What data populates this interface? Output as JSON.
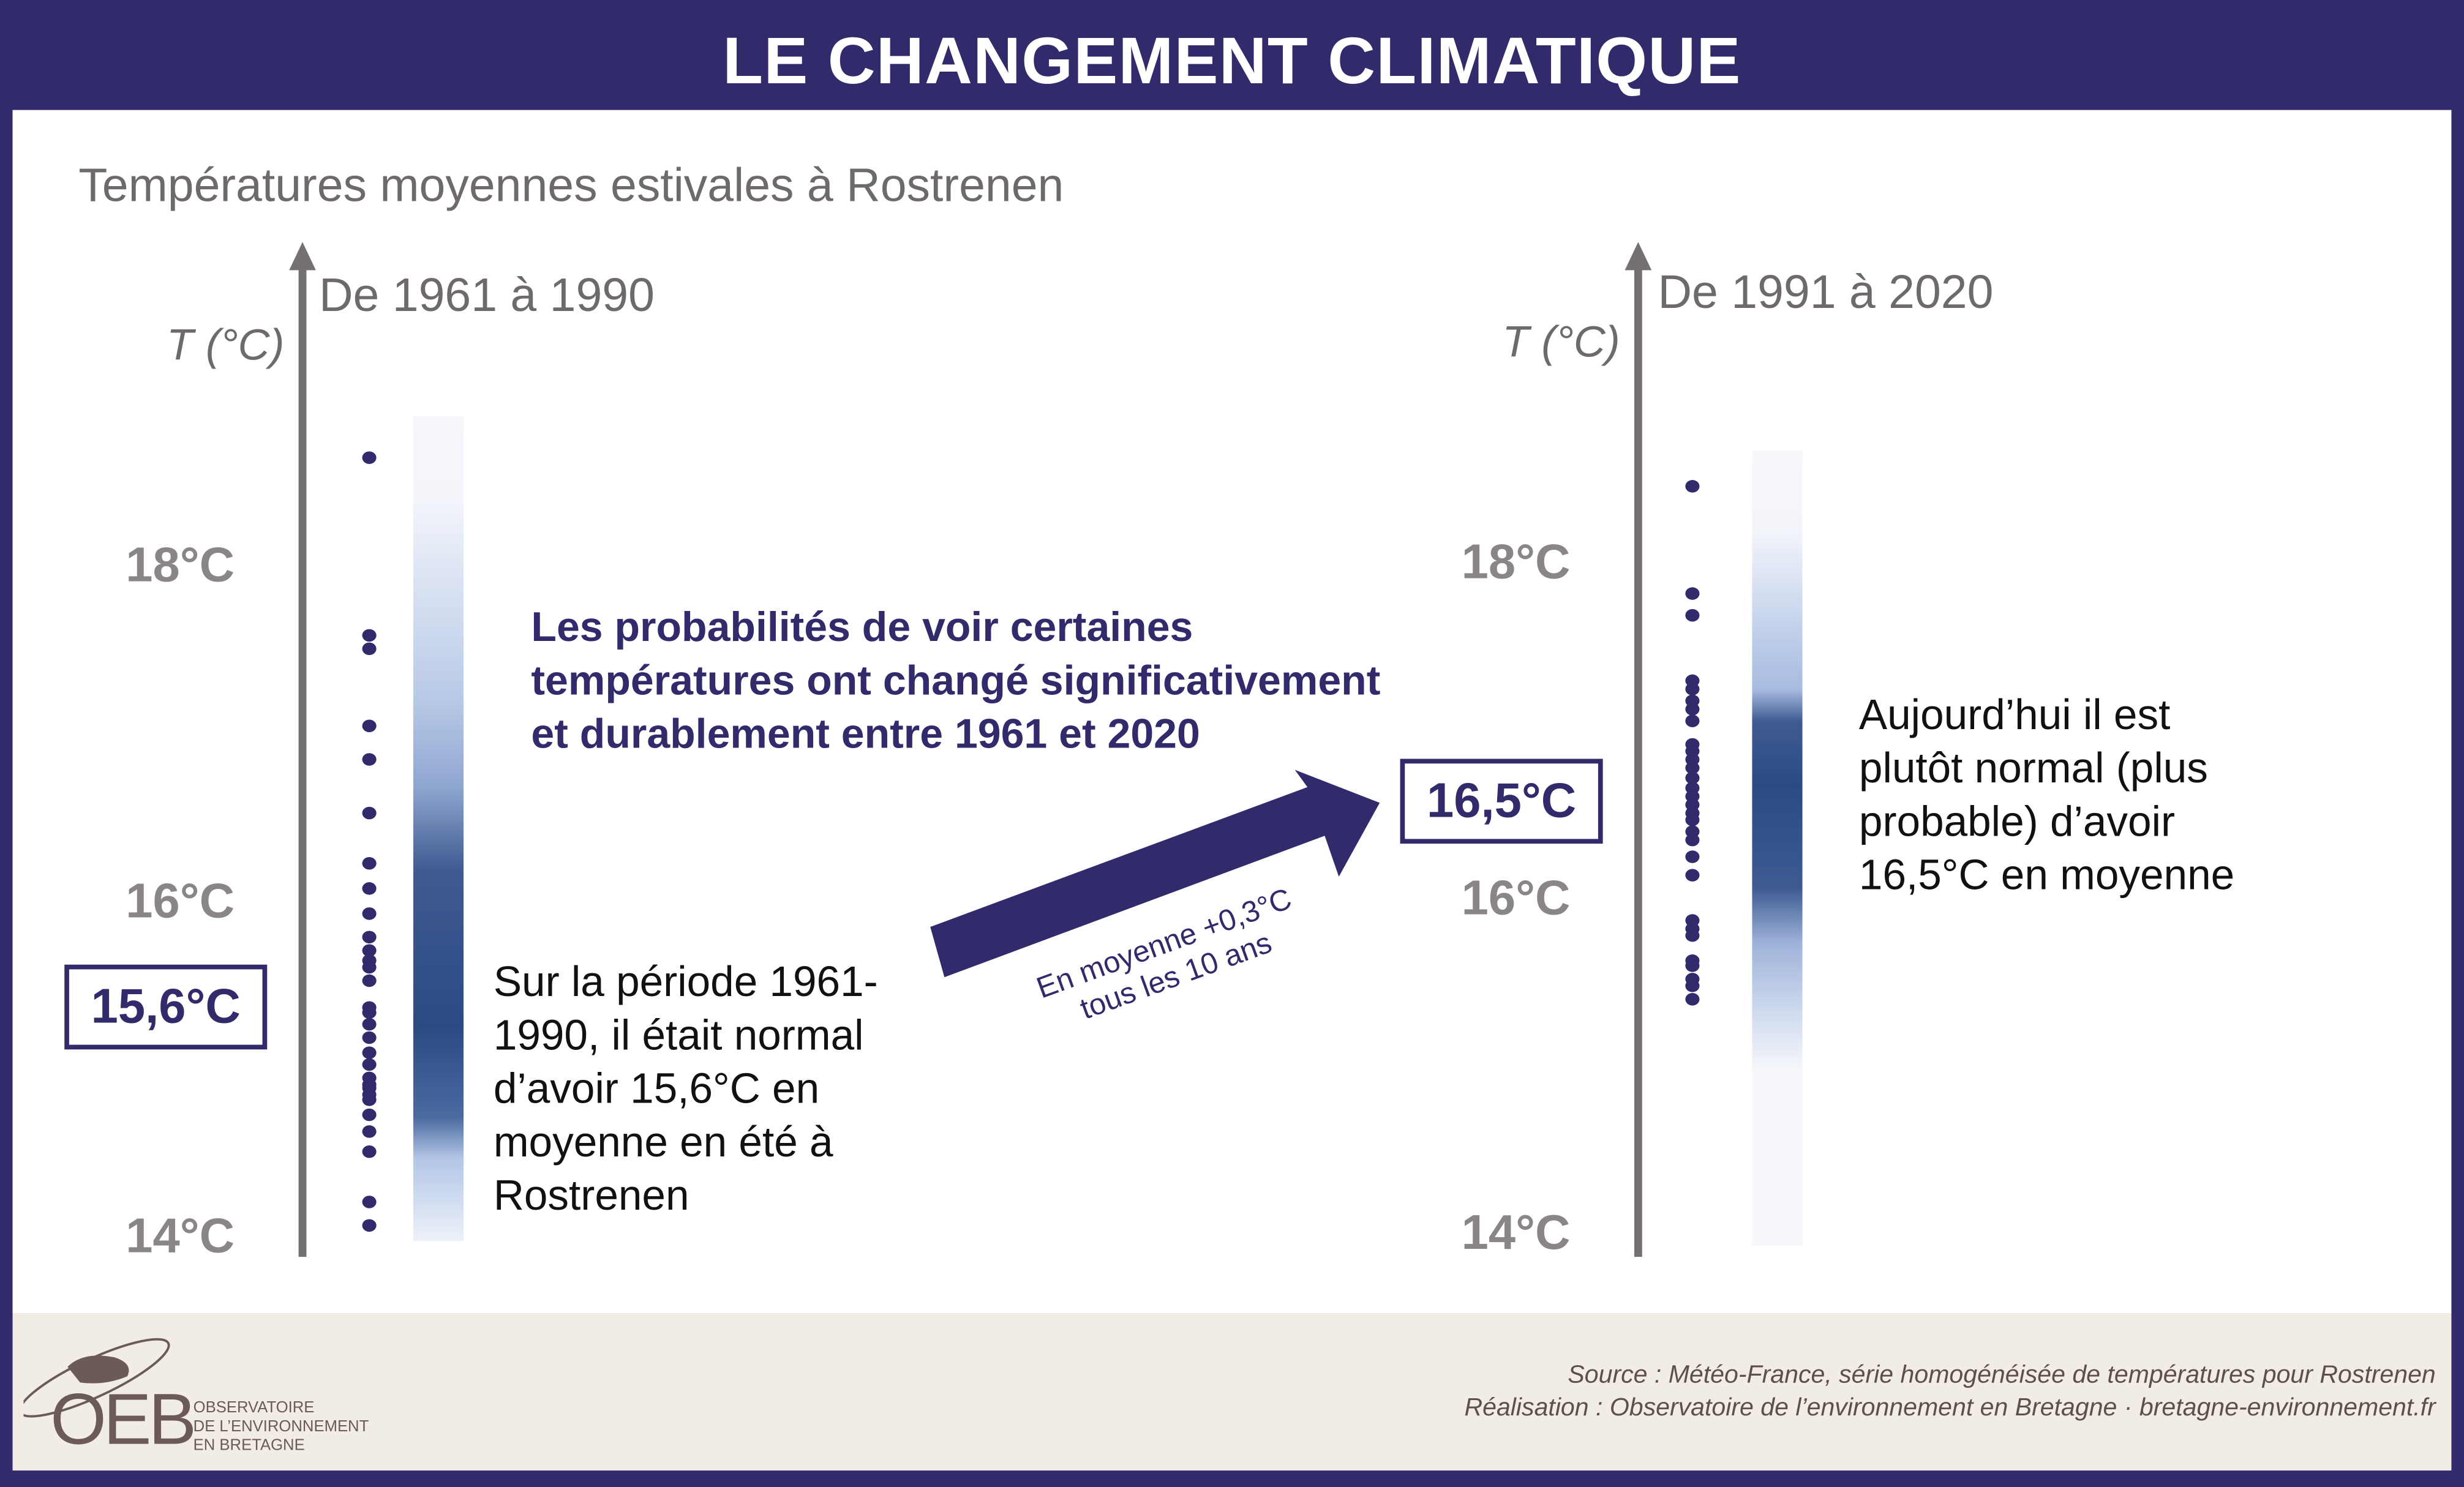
{
  "header": {
    "title": "LE CHANGEMENT CLIMATIQUE"
  },
  "colors": {
    "navy": "#312a6b",
    "axis": "#757171",
    "gradient_dark": "#2b4a84",
    "footer_bg": "#f2ede4"
  },
  "chart_data": [
    {
      "type": "scatter",
      "title": "Températures moyennes estivales à Rostrenen",
      "period": "De 1961 à 1990",
      "ylabel": "T (°C)",
      "ylim": [
        14,
        18.7
      ],
      "yticks": [
        "18°C",
        "16°C",
        "14°C"
      ],
      "values": [
        18.64,
        17.58,
        17.5,
        17.04,
        16.84,
        16.52,
        16.22,
        16.07,
        15.92,
        15.78,
        15.7,
        15.64,
        15.6,
        15.52,
        15.36,
        15.33,
        15.26,
        15.18,
        15.09,
        15.02,
        14.94,
        14.9,
        14.88,
        14.84,
        14.81,
        14.72,
        14.62,
        14.5,
        14.2,
        14.06
      ],
      "mean_label": "15,6°C",
      "mean": 15.6
    },
    {
      "type": "scatter",
      "period": "De 1991 à 2020",
      "ylabel": "T (°C)",
      "ylim": [
        14,
        18.7
      ],
      "yticks": [
        "18°C",
        "16°C",
        "14°C"
      ],
      "values": [
        18.46,
        17.82,
        17.69,
        17.3,
        17.25,
        17.18,
        17.13,
        17.06,
        16.92,
        16.88,
        16.83,
        16.78,
        16.72,
        16.66,
        16.61,
        16.56,
        16.51,
        16.47,
        16.4,
        16.35,
        16.25,
        16.14,
        15.87,
        15.82,
        15.78,
        15.63,
        15.6,
        15.52,
        15.48,
        15.4
      ],
      "mean_label": "16,5°C",
      "mean": 16.5
    }
  ],
  "text": {
    "headline": "Les probabilités de voir certaines températures ont changé significativement et durablement entre 1961 et 2020",
    "left_note": "Sur la période 1961-1990, il était normal d’avoir 15,6°C en moyenne en été à Rostrenen",
    "right_note": "Aujourd’hui il est plutôt normal (plus probable) d’avoir 16,5°C en moyenne",
    "trend_line1": "En moyenne +0,3°C",
    "trend_line2": "tous les 10 ans"
  },
  "footer": {
    "source": "Source : Météo-France, série homogénéisée de températures pour Rostrenen",
    "credit": "Réalisation : Observatoire de l’environnement en Bretagne · bretagne-environnement.fr",
    "logo": "OEB",
    "logo_line1": "OBSERVATOIRE",
    "logo_line2": "DE L’ENVIRONNEMENT",
    "logo_line3": "EN BRETAGNE"
  }
}
